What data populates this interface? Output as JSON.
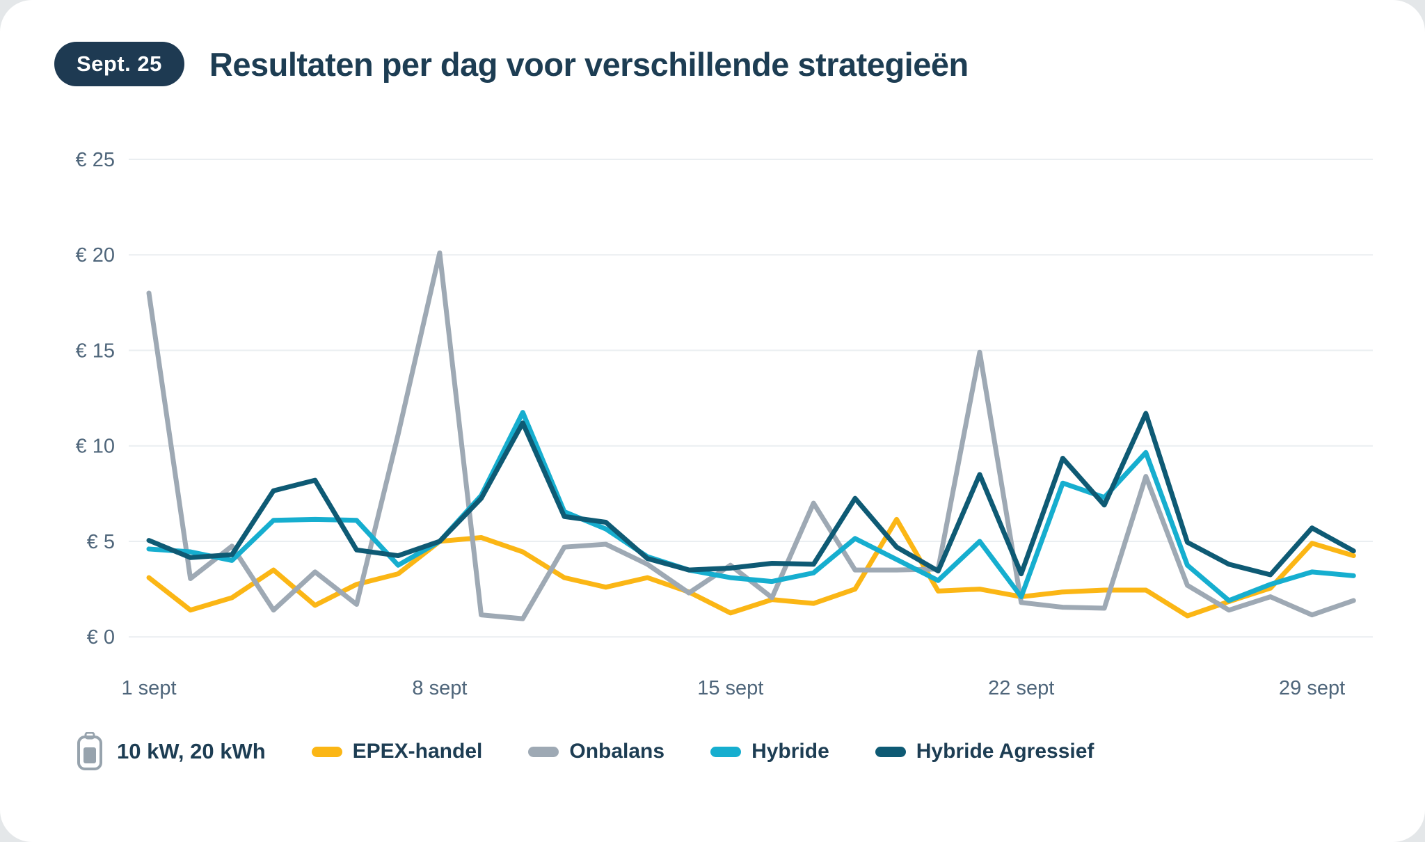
{
  "header": {
    "badge": "Sept. 25",
    "title": "Resultaten per dag voor verschillende strategieën"
  },
  "legend": {
    "battery_label": "10 kW, 20 kWh"
  },
  "chart_data": {
    "type": "line",
    "title": "Resultaten per dag voor verschillende strategieën",
    "xlabel": "",
    "ylabel": "",
    "currency_prefix": "€",
    "x_unit": "day of September",
    "x": [
      1,
      2,
      3,
      4,
      5,
      6,
      7,
      8,
      9,
      10,
      11,
      12,
      13,
      14,
      15,
      16,
      17,
      18,
      19,
      20,
      21,
      22,
      23,
      24,
      25,
      26,
      27,
      28,
      29,
      30
    ],
    "x_tick_days": [
      1,
      8,
      15,
      22,
      29
    ],
    "x_tick_labels": [
      "1 sept",
      "8 sept",
      "15 sept",
      "22 sept",
      "29 sept"
    ],
    "y_ticks": [
      0,
      5,
      10,
      15,
      20,
      25
    ],
    "y_tick_labels": [
      "€ 0",
      "€ 5",
      "€ 10",
      "€ 15",
      "€ 20",
      "€ 25"
    ],
    "ylim": [
      0,
      25
    ],
    "grid": "horizontal",
    "legend_position": "bottom",
    "series": [
      {
        "name": "EPEX-handel",
        "color": "#fbb615",
        "values": [
          3.1,
          1.4,
          2.05,
          3.5,
          1.65,
          2.75,
          3.3,
          5.0,
          5.2,
          4.45,
          3.1,
          2.6,
          3.1,
          2.35,
          1.25,
          1.95,
          1.75,
          2.5,
          6.15,
          2.4,
          2.5,
          2.1,
          2.35,
          2.45,
          2.45,
          1.1,
          1.85,
          2.55,
          4.9,
          4.25
        ]
      },
      {
        "name": "Onbalans",
        "color": "#9ea9b4",
        "values": [
          18.0,
          3.05,
          4.75,
          1.4,
          3.4,
          1.7,
          10.6,
          20.1,
          1.15,
          0.95,
          4.7,
          4.85,
          3.8,
          2.3,
          3.75,
          2.05,
          7.0,
          3.5,
          3.5,
          3.55,
          14.9,
          1.8,
          1.55,
          1.5,
          8.4,
          2.7,
          1.4,
          2.1,
          1.15,
          1.9
        ]
      },
      {
        "name": "Hybride",
        "color": "#16aecf",
        "values": [
          4.6,
          4.45,
          4.0,
          6.1,
          6.15,
          6.1,
          3.75,
          5.0,
          7.4,
          11.75,
          6.55,
          5.65,
          4.2,
          3.5,
          3.1,
          2.9,
          3.35,
          5.15,
          4.05,
          2.95,
          5.0,
          2.1,
          8.05,
          7.3,
          9.65,
          3.75,
          1.9,
          2.75,
          3.4,
          3.2
        ]
      },
      {
        "name": "Hybride Agressief",
        "color": "#0e5a74",
        "values": [
          5.05,
          4.15,
          4.3,
          7.65,
          8.2,
          4.55,
          4.25,
          5.0,
          7.25,
          11.2,
          6.3,
          6.0,
          4.1,
          3.5,
          3.6,
          3.85,
          3.8,
          7.25,
          4.7,
          3.45,
          8.5,
          3.3,
          9.35,
          6.9,
          11.7,
          4.95,
          3.8,
          3.25,
          5.7,
          4.5
        ]
      }
    ]
  }
}
